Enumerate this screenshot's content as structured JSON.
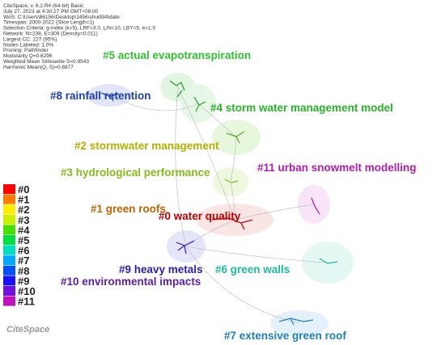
{
  "header": {
    "lines": [
      "CiteSpace, v. 6.2.R4 (64-bit) Basic",
      "July 27, 2023 at 4:30:27 PM GMT+08:00",
      "WoS: C:\\Users\\86156\\Desktop\\1456\\shui934\\date",
      "Timespan: 2000-2022 (Slice Length=1)",
      "Selection Criteria: g-index (k=5), LRF=3.0, L/N=10, LBY=5, e=1.0",
      "Network: N=238, E=309 (Density=0.011)",
      "Largest CC: 227 (95%)",
      "Nodes Labeled: 1.0%",
      "Pruning: Pathfinder",
      "Modularity Q=0.6296",
      "Weighted Mean Silhouette S=0.9543",
      "Harmonic Mean(Q, S)=0.8877"
    ]
  },
  "clusters": [
    {
      "label": "#5 actual evapotranspiration",
      "color": "#2fc42f"
    },
    {
      "label": "#8 rainfall retention",
      "color": "#1c3cb8"
    },
    {
      "label": "#4 storm water management model",
      "color": "#28b428"
    },
    {
      "label": "#2 stormwater management",
      "color": "#b4b000"
    },
    {
      "label": "#3 hydrological performance",
      "color": "#84bc1c"
    },
    {
      "label": "#11 urban snowmelt modelling",
      "color": "#b01cb0"
    },
    {
      "label": "#1 green roofs",
      "color": "#c46200"
    },
    {
      "label": "#0 water quality",
      "color": "#c00000"
    },
    {
      "label": "#9 heavy metals",
      "color": "#2c1cbc"
    },
    {
      "label": "#6 green walls",
      "color": "#1cbc9c"
    },
    {
      "label": "#10 environmental impacts",
      "color": "#5c1cb0"
    },
    {
      "label": "#7 extensive green roof",
      "color": "#1a80c0"
    }
  ],
  "legend": {
    "items": [
      {
        "label": "#0",
        "color": "#ff0000"
      },
      {
        "label": "#1",
        "color": "#ff7a00"
      },
      {
        "label": "#2",
        "color": "#ffee00"
      },
      {
        "label": "#3",
        "color": "#c8f000"
      },
      {
        "label": "#4",
        "color": "#44e000"
      },
      {
        "label": "#5",
        "color": "#00e040"
      },
      {
        "label": "#6",
        "color": "#00e0c0"
      },
      {
        "label": "#7",
        "color": "#00a8ff"
      },
      {
        "label": "#8",
        "color": "#0050ff"
      },
      {
        "label": "#9",
        "color": "#1a10ff"
      },
      {
        "label": "#10",
        "color": "#7010e0"
      },
      {
        "label": "#11",
        "color": "#c010c0"
      }
    ]
  },
  "logo": "CiteSpace"
}
